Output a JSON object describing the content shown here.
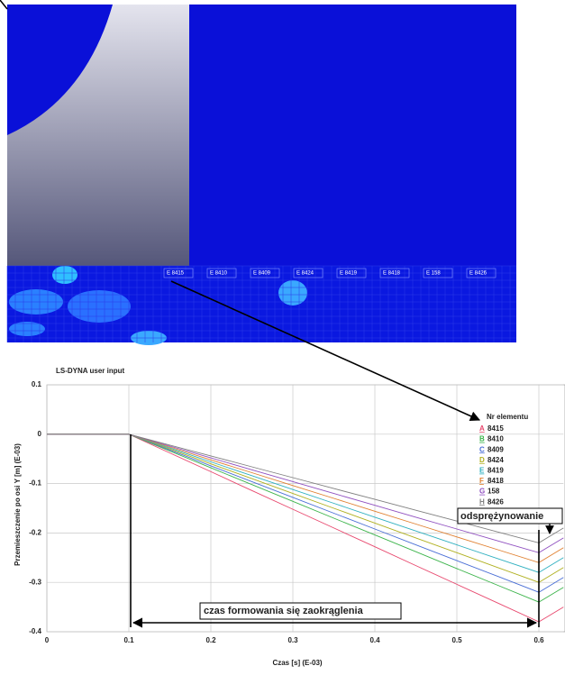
{
  "chart_data": {
    "type": "line",
    "title": "LS-DYNA user input",
    "x_label": "Czas [s] (E-03)",
    "y_label": "Przemieszczenie po osi Y [m] (E-03)",
    "legend_title": "Nr elementu",
    "x": [
      0,
      0.05,
      0.1,
      0.15,
      0.2,
      0.25,
      0.3,
      0.35,
      0.4,
      0.45,
      0.5,
      0.55,
      0.6,
      0.63
    ],
    "series": [
      {
        "name": "8415",
        "marker": "A",
        "color": "#e8486e",
        "values": [
          0,
          0,
          0,
          -0.038,
          -0.076,
          -0.114,
          -0.152,
          -0.19,
          -0.228,
          -0.266,
          -0.304,
          -0.342,
          -0.38,
          -0.35
        ]
      },
      {
        "name": "8410",
        "marker": "B",
        "color": "#3cb44b",
        "values": [
          0,
          0,
          0,
          -0.034,
          -0.068,
          -0.102,
          -0.136,
          -0.17,
          -0.204,
          -0.238,
          -0.272,
          -0.306,
          -0.34,
          -0.31
        ]
      },
      {
        "name": "8409",
        "marker": "C",
        "color": "#4a6fd6",
        "values": [
          0,
          0,
          0,
          -0.032,
          -0.064,
          -0.096,
          -0.128,
          -0.16,
          -0.192,
          -0.224,
          -0.256,
          -0.288,
          -0.32,
          -0.29
        ]
      },
      {
        "name": "8424",
        "marker": "D",
        "color": "#b0b020",
        "values": [
          0,
          0,
          0,
          -0.03,
          -0.06,
          -0.09,
          -0.12,
          -0.15,
          -0.18,
          -0.21,
          -0.24,
          -0.27,
          -0.3,
          -0.27
        ]
      },
      {
        "name": "8419",
        "marker": "E",
        "color": "#30b0c0",
        "values": [
          0,
          0,
          0,
          -0.028,
          -0.056,
          -0.084,
          -0.112,
          -0.14,
          -0.168,
          -0.196,
          -0.224,
          -0.252,
          -0.28,
          -0.25
        ]
      },
      {
        "name": "8418",
        "marker": "F",
        "color": "#e08030",
        "values": [
          0,
          0,
          0,
          -0.026,
          -0.052,
          -0.078,
          -0.104,
          -0.13,
          -0.156,
          -0.182,
          -0.208,
          -0.234,
          -0.26,
          -0.23
        ]
      },
      {
        "name": "158",
        "marker": "G",
        "color": "#9050c0",
        "values": [
          0,
          0,
          0,
          -0.024,
          -0.048,
          -0.072,
          -0.096,
          -0.12,
          -0.144,
          -0.168,
          -0.192,
          -0.216,
          -0.24,
          -0.21
        ]
      },
      {
        "name": "8426",
        "marker": "H",
        "color": "#808080",
        "values": [
          0,
          0,
          0,
          -0.022,
          -0.044,
          -0.066,
          -0.088,
          -0.11,
          -0.132,
          -0.154,
          -0.176,
          -0.198,
          -0.22,
          -0.19
        ]
      }
    ],
    "xlim": [
      0,
      0.63
    ],
    "ylim": [
      -0.4,
      0.1
    ],
    "xticks": [
      0,
      0.1,
      0.2,
      0.3,
      0.4,
      0.5,
      0.6
    ],
    "yticks": [
      -0.4,
      -0.3,
      -0.2,
      -0.1,
      0,
      0.1
    ],
    "grid": true,
    "annotations": [
      "czas formowania się zaokrąglenia",
      "odsprężynowanie"
    ]
  },
  "image_labels": [
    "E 8415",
    "E 8410",
    "E 8409",
    "E 8424",
    "E 8419",
    "E 8418",
    "E 158",
    "E 8426"
  ]
}
